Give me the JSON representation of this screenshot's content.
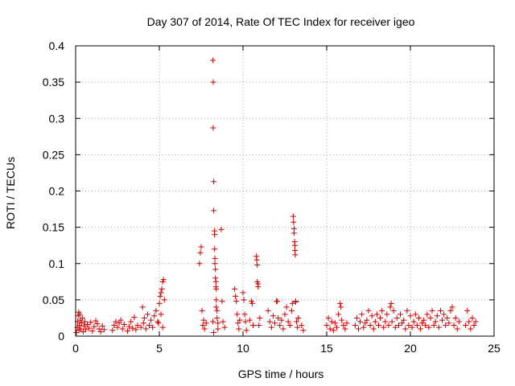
{
  "chart_data": {
    "type": "scatter",
    "title": "Day 307 of 2014, Rate Of TEC Index for receiver igeo",
    "xlabel": "GPS time / hours",
    "ylabel": "ROTI / TECUs",
    "xlim": [
      0,
      25
    ],
    "ylim": [
      0,
      0.4
    ],
    "xticks": [
      0,
      5,
      10,
      15,
      20,
      25
    ],
    "xtick_labels": [
      "0",
      "5",
      "10",
      "15",
      "20",
      "25"
    ],
    "yticks": [
      0,
      0.05,
      0.1,
      0.15,
      0.2,
      0.25,
      0.3,
      0.35,
      0.4
    ],
    "ytick_labels": [
      "0",
      "0.05",
      "0.1",
      "0.15",
      "0.2",
      "0.25",
      "0.3",
      "0.35",
      "0.4"
    ],
    "grid": true,
    "marker": "+",
    "color": "#cc0000",
    "series": [
      {
        "name": "ROTI",
        "points": [
          [
            0.05,
            0.005
          ],
          [
            0.1,
            0.012
          ],
          [
            0.12,
            0.02
          ],
          [
            0.15,
            0.028
          ],
          [
            0.18,
            0.033
          ],
          [
            0.2,
            0.008
          ],
          [
            0.22,
            0.015
          ],
          [
            0.25,
            0.03
          ],
          [
            0.28,
            0.022
          ],
          [
            0.3,
            0.01
          ],
          [
            0.35,
            0.018
          ],
          [
            0.4,
            0.025
          ],
          [
            0.45,
            0.006
          ],
          [
            0.5,
            0.014
          ],
          [
            0.55,
            0.02
          ],
          [
            0.6,
            0.009
          ],
          [
            0.7,
            0.016
          ],
          [
            0.8,
            0.011
          ],
          [
            0.9,
            0.019
          ],
          [
            1.0,
            0.007
          ],
          [
            1.1,
            0.013
          ],
          [
            1.2,
            0.021
          ],
          [
            1.3,
            0.017
          ],
          [
            1.4,
            0.01
          ],
          [
            1.5,
            0.006
          ],
          [
            1.6,
            0.014
          ],
          [
            1.7,
            0.009
          ],
          [
            2.2,
            0.008
          ],
          [
            2.3,
            0.015
          ],
          [
            2.4,
            0.02
          ],
          [
            2.5,
            0.012
          ],
          [
            2.6,
            0.018
          ],
          [
            2.7,
            0.022
          ],
          [
            2.8,
            0.01
          ],
          [
            2.9,
            0.016
          ],
          [
            3.1,
            0.007
          ],
          [
            3.2,
            0.013
          ],
          [
            3.3,
            0.02
          ],
          [
            3.4,
            0.011
          ],
          [
            3.5,
            0.026
          ],
          [
            3.6,
            0.009
          ],
          [
            3.7,
            0.015
          ],
          [
            3.9,
            0.012
          ],
          [
            4.0,
            0.04
          ],
          [
            4.05,
            0.018
          ],
          [
            4.1,
            0.025
          ],
          [
            4.2,
            0.01
          ],
          [
            4.3,
            0.03
          ],
          [
            4.4,
            0.015
          ],
          [
            4.5,
            0.022
          ],
          [
            4.6,
            0.012
          ],
          [
            4.7,
            0.028
          ],
          [
            4.8,
            0.035
          ],
          [
            4.9,
            0.02
          ],
          [
            5.0,
            0.045
          ],
          [
            5.05,
            0.055
          ],
          [
            5.1,
            0.06
          ],
          [
            5.15,
            0.065
          ],
          [
            5.2,
            0.075
          ],
          [
            5.25,
            0.078
          ],
          [
            5.3,
            0.05
          ],
          [
            5.1,
            0.03
          ],
          [
            5.2,
            0.012
          ],
          [
            4.95,
            0.018
          ],
          [
            7.4,
            0.1
          ],
          [
            7.45,
            0.115
          ],
          [
            7.5,
            0.123
          ],
          [
            7.55,
            0.035
          ],
          [
            7.6,
            0.015
          ],
          [
            7.65,
            0.022
          ],
          [
            7.7,
            0.01
          ],
          [
            7.8,
            0.018
          ],
          [
            8.2,
            0.38
          ],
          [
            8.22,
            0.35
          ],
          [
            8.22,
            0.287
          ],
          [
            8.25,
            0.213
          ],
          [
            8.25,
            0.173
          ],
          [
            8.3,
            0.145
          ],
          [
            8.3,
            0.14
          ],
          [
            8.3,
            0.12
          ],
          [
            8.32,
            0.107
          ],
          [
            8.32,
            0.1
          ],
          [
            8.35,
            0.092
          ],
          [
            8.35,
            0.08
          ],
          [
            8.38,
            0.075
          ],
          [
            8.38,
            0.068
          ],
          [
            8.4,
            0.065
          ],
          [
            8.4,
            0.05
          ],
          [
            8.4,
            0.04
          ],
          [
            8.45,
            0.035
          ],
          [
            8.45,
            0.025
          ],
          [
            8.5,
            0.018
          ],
          [
            8.5,
            0.01
          ],
          [
            8.2,
            0.02
          ],
          [
            8.25,
            0.005
          ],
          [
            8.7,
            0.147
          ],
          [
            8.75,
            0.048
          ],
          [
            8.8,
            0.02
          ],
          [
            8.9,
            0.012
          ],
          [
            9.5,
            0.065
          ],
          [
            9.55,
            0.055
          ],
          [
            9.6,
            0.048
          ],
          [
            9.65,
            0.03
          ],
          [
            9.7,
            0.018
          ],
          [
            9.75,
            0.01
          ],
          [
            9.8,
            0.022
          ],
          [
            10.0,
            0.06
          ],
          [
            10.05,
            0.05
          ],
          [
            10.1,
            0.03
          ],
          [
            10.15,
            0.02
          ],
          [
            10.2,
            0.008
          ],
          [
            10.5,
            0.048
          ],
          [
            10.55,
            0.045
          ],
          [
            10.4,
            0.022
          ],
          [
            10.6,
            0.015
          ],
          [
            10.8,
            0.11
          ],
          [
            10.82,
            0.105
          ],
          [
            10.85,
            0.098
          ],
          [
            10.85,
            0.075
          ],
          [
            10.9,
            0.072
          ],
          [
            10.9,
            0.068
          ],
          [
            10.95,
            0.015
          ],
          [
            11.0,
            0.025
          ],
          [
            11.5,
            0.035
          ],
          [
            11.6,
            0.02
          ],
          [
            11.7,
            0.012
          ],
          [
            11.8,
            0.028
          ],
          [
            11.9,
            0.018
          ],
          [
            12.0,
            0.048
          ],
          [
            12.05,
            0.048
          ],
          [
            12.1,
            0.025
          ],
          [
            12.2,
            0.015
          ],
          [
            12.3,
            0.022
          ],
          [
            12.4,
            0.01
          ],
          [
            12.5,
            0.03
          ],
          [
            12.6,
            0.04
          ],
          [
            12.7,
            0.02
          ],
          [
            12.8,
            0.015
          ],
          [
            12.9,
            0.035
          ],
          [
            12.95,
            0.045
          ],
          [
            13.0,
            0.165
          ],
          [
            13.02,
            0.157
          ],
          [
            13.05,
            0.148
          ],
          [
            13.05,
            0.142
          ],
          [
            13.08,
            0.13
          ],
          [
            13.1,
            0.125
          ],
          [
            13.1,
            0.118
          ],
          [
            13.12,
            0.112
          ],
          [
            13.15,
            0.048
          ],
          [
            13.15,
            0.047
          ],
          [
            13.2,
            0.02
          ],
          [
            13.25,
            0.012
          ],
          [
            13.3,
            0.025
          ],
          [
            13.5,
            0.015
          ],
          [
            13.6,
            0.008
          ],
          [
            15.0,
            0.015
          ],
          [
            15.1,
            0.025
          ],
          [
            15.2,
            0.01
          ],
          [
            15.3,
            0.02
          ],
          [
            15.4,
            0.008
          ],
          [
            15.5,
            0.018
          ],
          [
            15.6,
            0.012
          ],
          [
            15.7,
            0.03
          ],
          [
            15.8,
            0.045
          ],
          [
            15.85,
            0.04
          ],
          [
            15.9,
            0.022
          ],
          [
            16.0,
            0.015
          ],
          [
            16.1,
            0.01
          ],
          [
            16.2,
            0.018
          ],
          [
            16.7,
            0.015
          ],
          [
            16.8,
            0.025
          ],
          [
            16.9,
            0.01
          ],
          [
            17.0,
            0.02
          ],
          [
            17.1,
            0.03
          ],
          [
            17.2,
            0.012
          ],
          [
            17.3,
            0.018
          ],
          [
            17.4,
            0.022
          ],
          [
            17.5,
            0.035
          ],
          [
            17.6,
            0.015
          ],
          [
            17.7,
            0.028
          ],
          [
            17.8,
            0.01
          ],
          [
            17.9,
            0.02
          ],
          [
            18.0,
            0.03
          ],
          [
            18.1,
            0.015
          ],
          [
            18.2,
            0.025
          ],
          [
            18.3,
            0.035
          ],
          [
            18.4,
            0.012
          ],
          [
            18.5,
            0.02
          ],
          [
            18.6,
            0.03
          ],
          [
            18.7,
            0.015
          ],
          [
            18.8,
            0.04
          ],
          [
            18.85,
            0.045
          ],
          [
            18.9,
            0.02
          ],
          [
            19.0,
            0.035
          ],
          [
            19.1,
            0.012
          ],
          [
            19.2,
            0.025
          ],
          [
            19.3,
            0.015
          ],
          [
            19.4,
            0.03
          ],
          [
            19.5,
            0.018
          ],
          [
            19.6,
            0.022
          ],
          [
            19.7,
            0.01
          ],
          [
            19.8,
            0.035
          ],
          [
            19.9,
            0.015
          ],
          [
            20.0,
            0.028
          ],
          [
            20.1,
            0.012
          ],
          [
            20.2,
            0.02
          ],
          [
            20.3,
            0.03
          ],
          [
            20.4,
            0.015
          ],
          [
            20.5,
            0.025
          ],
          [
            20.6,
            0.01
          ],
          [
            20.7,
            0.018
          ],
          [
            20.8,
            0.022
          ],
          [
            20.9,
            0.015
          ],
          [
            21.0,
            0.03
          ],
          [
            21.1,
            0.012
          ],
          [
            21.2,
            0.025
          ],
          [
            21.3,
            0.035
          ],
          [
            21.4,
            0.015
          ],
          [
            21.5,
            0.02
          ],
          [
            21.6,
            0.028
          ],
          [
            21.7,
            0.012
          ],
          [
            21.8,
            0.035
          ],
          [
            21.9,
            0.022
          ],
          [
            22.0,
            0.03
          ],
          [
            22.1,
            0.015
          ],
          [
            22.2,
            0.025
          ],
          [
            22.3,
            0.018
          ],
          [
            22.4,
            0.035
          ],
          [
            22.5,
            0.04
          ],
          [
            22.6,
            0.015
          ],
          [
            22.7,
            0.025
          ],
          [
            22.8,
            0.01
          ],
          [
            22.9,
            0.02
          ],
          [
            23.3,
            0.015
          ],
          [
            23.4,
            0.035
          ],
          [
            23.5,
            0.02
          ],
          [
            23.6,
            0.01
          ],
          [
            23.7,
            0.025
          ],
          [
            23.8,
            0.015
          ],
          [
            23.9,
            0.02
          ]
        ]
      }
    ]
  }
}
